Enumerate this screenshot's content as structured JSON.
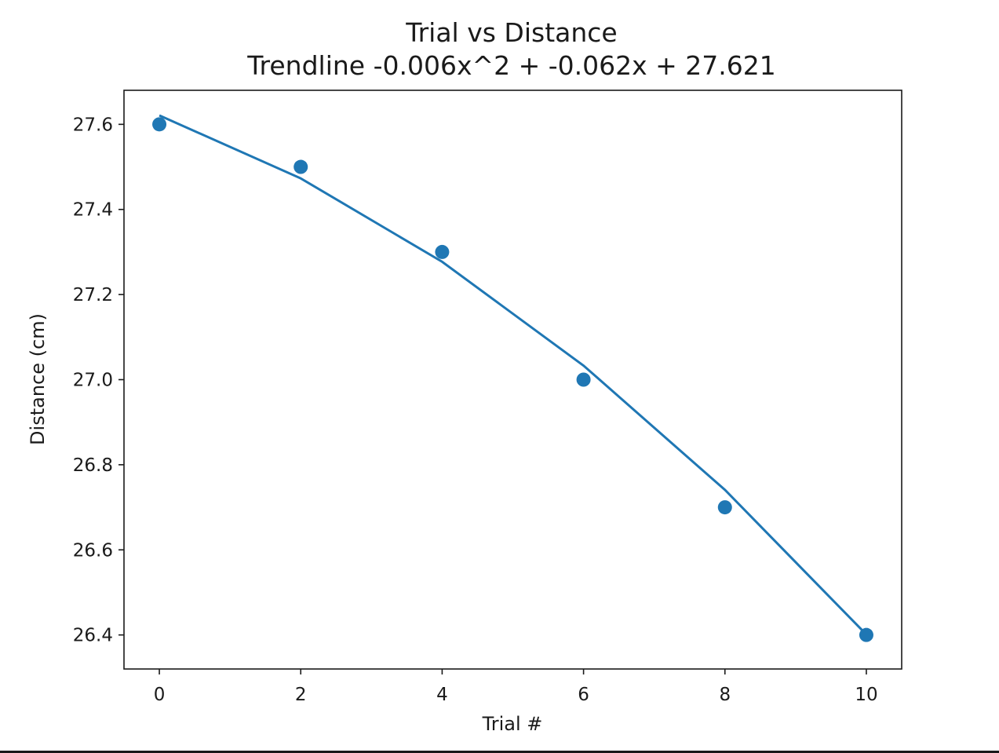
{
  "chart_data": {
    "type": "scatter",
    "title": "Trial vs Distance",
    "subtitle": "Trendline -0.006x^2 + -0.062x + 27.621",
    "xlabel": "Trial #",
    "ylabel": "Distance (cm)",
    "xlim": [
      -0.5,
      10.5
    ],
    "ylim": [
      26.32,
      27.68
    ],
    "xticks": [
      0,
      2,
      4,
      6,
      8,
      10
    ],
    "yticks": [
      26.4,
      26.6,
      26.8,
      27.0,
      27.2,
      27.4,
      27.6
    ],
    "grid": false,
    "colors": {
      "series": "#1f77b4",
      "axes": "#1a1a1a"
    },
    "series": [
      {
        "kind": "scatter",
        "x": [
          0,
          2,
          4,
          6,
          8,
          10
        ],
        "y": [
          27.6,
          27.5,
          27.3,
          27.0,
          26.7,
          26.4
        ]
      },
      {
        "kind": "line",
        "x": [
          0,
          2,
          4,
          6,
          8,
          10
        ],
        "y": [
          27.621,
          27.473,
          27.277,
          27.033,
          26.741,
          26.401
        ]
      }
    ]
  }
}
